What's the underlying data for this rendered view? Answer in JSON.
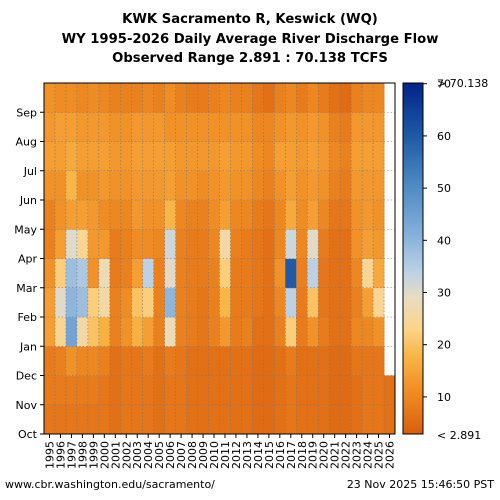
{
  "title_lines": [
    "KWK Sacramento R, Keswick (WQ)",
    "WY 1995-2026 Daily Average River Discharge Flow",
    "Observed Range 2.891 : 70.138 TCFS"
  ],
  "footer": {
    "left": "www.cbr.washington.edu/sacramento/",
    "right": "23 Nov 2025 15:46:50 PST"
  },
  "chart_data": {
    "type": "heatmap",
    "x_label": "",
    "y_label": "",
    "years": [
      1995,
      1996,
      1997,
      1998,
      1999,
      2000,
      2001,
      2002,
      2003,
      2004,
      2005,
      2006,
      2007,
      2008,
      2009,
      2010,
      2011,
      2012,
      2013,
      2014,
      2015,
      2016,
      2017,
      2018,
      2019,
      2020,
      2021,
      2022,
      2023,
      2024,
      2025,
      2026
    ],
    "months": [
      "Oct",
      "Nov",
      "Dec",
      "Jan",
      "Feb",
      "Mar",
      "Apr",
      "May",
      "Jun",
      "Jul",
      "Aug",
      "Sep"
    ],
    "colorbar": {
      "min": 2.891,
      "max": 70.138,
      "min_label": "< 2.891",
      "max_label": "> 70.138",
      "ticks": [
        10,
        20,
        30,
        40,
        50,
        60,
        70
      ]
    },
    "grid": true,
    "monthly_avg_tcfs": [
      [
        7,
        8,
        8,
        14,
        14,
        12,
        9,
        9,
        12,
        14,
        13,
        12
      ],
      [
        7,
        8,
        9,
        24,
        30,
        22,
        14,
        12,
        12,
        14,
        14,
        11
      ],
      [
        7,
        8,
        12,
        44,
        40,
        38,
        30,
        14,
        18,
        16,
        14,
        11
      ],
      [
        7,
        8,
        10,
        26,
        38,
        36,
        24,
        14,
        12,
        14,
        13,
        10
      ],
      [
        7,
        8,
        10,
        20,
        22,
        12,
        13,
        13,
        12,
        14,
        13,
        11
      ],
      [
        7,
        7,
        9,
        17,
        26,
        28,
        13,
        11,
        13,
        14,
        13,
        10
      ],
      [
        6,
        6,
        6,
        9,
        9,
        8,
        8,
        10,
        12,
        13,
        12,
        9
      ],
      [
        7,
        7,
        7,
        12,
        11,
        9,
        9,
        10,
        12,
        13,
        12,
        9
      ],
      [
        7,
        7,
        7,
        17,
        20,
        14,
        11,
        13,
        13,
        14,
        13,
        9
      ],
      [
        7,
        7,
        8,
        14,
        22,
        34,
        11,
        12,
        13,
        14,
        13,
        10
      ],
      [
        6,
        6,
        6,
        9,
        9,
        9,
        10,
        12,
        13,
        14,
        13,
        9
      ],
      [
        7,
        7,
        8,
        28,
        40,
        30,
        32,
        18,
        14,
        14,
        12,
        11
      ],
      [
        7,
        7,
        7,
        9,
        9,
        9,
        9,
        10,
        12,
        13,
        12,
        9
      ],
      [
        6,
        6,
        6,
        8,
        8,
        8,
        8,
        9,
        12,
        13,
        12,
        8
      ],
      [
        6,
        6,
        6,
        7,
        7,
        8,
        8,
        9,
        11,
        13,
        12,
        8
      ],
      [
        6,
        6,
        6,
        9,
        9,
        9,
        10,
        11,
        12,
        13,
        12,
        9
      ],
      [
        6,
        6,
        6,
        13,
        18,
        22,
        26,
        14,
        13,
        14,
        12,
        10
      ],
      [
        6,
        6,
        6,
        8,
        8,
        8,
        9,
        10,
        12,
        13,
        12,
        9
      ],
      [
        6,
        6,
        6,
        9,
        8,
        8,
        8,
        10,
        12,
        13,
        12,
        9
      ],
      [
        5,
        5,
        5,
        6,
        7,
        7,
        7,
        8,
        10,
        11,
        10,
        7
      ],
      [
        5,
        5,
        5,
        6,
        6,
        6,
        6,
        7,
        9,
        10,
        10,
        6
      ],
      [
        6,
        6,
        6,
        9,
        10,
        12,
        10,
        10,
        12,
        14,
        12,
        9
      ],
      [
        7,
        7,
        8,
        22,
        34,
        60,
        32,
        16,
        14,
        14,
        13,
        10
      ],
      [
        6,
        6,
        6,
        8,
        8,
        9,
        10,
        11,
        12,
        13,
        12,
        8
      ],
      [
        6,
        6,
        6,
        12,
        20,
        34,
        30,
        14,
        13,
        14,
        13,
        10
      ],
      [
        6,
        6,
        6,
        8,
        7,
        7,
        8,
        10,
        12,
        13,
        12,
        8
      ],
      [
        5,
        5,
        5,
        6,
        6,
        6,
        6,
        7,
        9,
        10,
        9,
        6
      ],
      [
        5,
        5,
        5,
        6,
        6,
        6,
        6,
        7,
        8,
        9,
        8,
        5
      ],
      [
        6,
        6,
        7,
        10,
        9,
        10,
        12,
        12,
        13,
        14,
        13,
        9
      ],
      [
        7,
        7,
        7,
        10,
        14,
        24,
        14,
        13,
        13,
        14,
        13,
        10
      ],
      [
        7,
        7,
        7,
        12,
        24,
        16,
        13,
        12,
        13,
        14,
        13,
        10
      ],
      [
        6,
        6,
        null,
        null,
        null,
        null,
        null,
        null,
        null,
        null,
        null,
        null
      ]
    ]
  }
}
